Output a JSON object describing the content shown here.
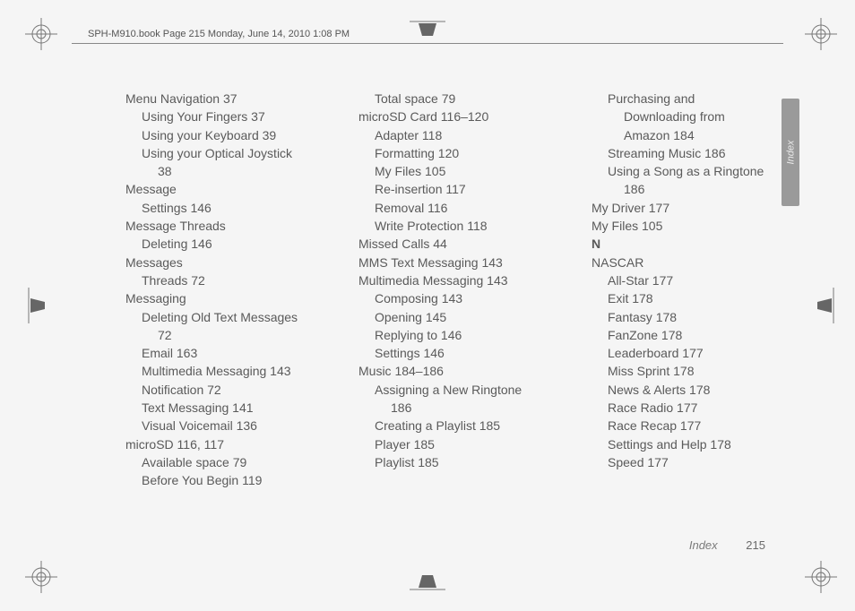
{
  "header": "SPH-M910.book  Page 215  Monday, June 14, 2010  1:08 PM",
  "sideTab": "Index",
  "footer": {
    "label": "Index",
    "page": "215"
  },
  "colors": {
    "background": "#f5f5f5",
    "text": "#5a5a5a",
    "header_text": "#555555",
    "rule": "#888888",
    "tab_bg": "#9a9a9a",
    "tab_text": "#eaeaea",
    "footer_text": "#6a6a6a"
  },
  "columns": [
    [
      {
        "lvl": 0,
        "t": "Menu Navigation 37"
      },
      {
        "lvl": 1,
        "t": "Using Your Fingers 37"
      },
      {
        "lvl": 1,
        "t": "Using your Keyboard 39"
      },
      {
        "lvl": 1,
        "t": "Using your Optical Joystick"
      },
      {
        "lvl": 2,
        "t": "38"
      },
      {
        "lvl": 0,
        "t": "Message"
      },
      {
        "lvl": 1,
        "t": "Settings 146"
      },
      {
        "lvl": 0,
        "t": "Message Threads"
      },
      {
        "lvl": 1,
        "t": "Deleting 146"
      },
      {
        "lvl": 0,
        "t": "Messages"
      },
      {
        "lvl": 1,
        "t": "Threads 72"
      },
      {
        "lvl": 0,
        "t": "Messaging"
      },
      {
        "lvl": 1,
        "t": "Deleting Old Text Messages"
      },
      {
        "lvl": 2,
        "t": "72"
      },
      {
        "lvl": 1,
        "t": "Email 163"
      },
      {
        "lvl": 1,
        "t": "Multimedia Messaging 143"
      },
      {
        "lvl": 1,
        "t": "Notification 72"
      },
      {
        "lvl": 1,
        "t": "Text Messaging 141"
      },
      {
        "lvl": 1,
        "t": "Visual Voicemail 136"
      },
      {
        "lvl": 0,
        "t": "microSD 116, 117"
      },
      {
        "lvl": 1,
        "t": "Available space 79"
      },
      {
        "lvl": 1,
        "t": "Before You Begin 119"
      }
    ],
    [
      {
        "lvl": 1,
        "t": "Total space 79"
      },
      {
        "lvl": 0,
        "t": "microSD Card 116–120"
      },
      {
        "lvl": 1,
        "t": "Adapter 118"
      },
      {
        "lvl": 1,
        "t": "Formatting 120"
      },
      {
        "lvl": 1,
        "t": "My Files 105"
      },
      {
        "lvl": 1,
        "t": "Re-insertion 117"
      },
      {
        "lvl": 1,
        "t": "Removal 116"
      },
      {
        "lvl": 1,
        "t": "Write Protection 118"
      },
      {
        "lvl": 0,
        "t": "Missed Calls 44"
      },
      {
        "lvl": 0,
        "t": "MMS Text Messaging 143"
      },
      {
        "lvl": 0,
        "t": "Multimedia Messaging 143"
      },
      {
        "lvl": 1,
        "t": "Composing 143"
      },
      {
        "lvl": 1,
        "t": "Opening 145"
      },
      {
        "lvl": 1,
        "t": "Replying to 146"
      },
      {
        "lvl": 1,
        "t": "Settings 146"
      },
      {
        "lvl": 0,
        "t": "Music 184–186"
      },
      {
        "lvl": 1,
        "t": "Assigning a New Ringtone"
      },
      {
        "lvl": 2,
        "t": "186"
      },
      {
        "lvl": 1,
        "t": "Creating a Playlist 185"
      },
      {
        "lvl": 1,
        "t": "Player 185"
      },
      {
        "lvl": 1,
        "t": "Playlist 185"
      }
    ],
    [
      {
        "lvl": 1,
        "t": "Purchasing and"
      },
      {
        "lvl": 2,
        "t": "Downloading from"
      },
      {
        "lvl": 2,
        "t": "Amazon 184"
      },
      {
        "lvl": 1,
        "t": "Streaming Music 186"
      },
      {
        "lvl": 1,
        "t": "Using a Song as a Ringtone"
      },
      {
        "lvl": 2,
        "t": "186"
      },
      {
        "lvl": 0,
        "t": "My Driver 177"
      },
      {
        "lvl": 0,
        "t": "My Files 105"
      },
      {
        "lvl": 0,
        "t": "N",
        "letter": true
      },
      {
        "lvl": 0,
        "t": "NASCAR"
      },
      {
        "lvl": 1,
        "t": "All-Star 177"
      },
      {
        "lvl": 1,
        "t": "Exit 178"
      },
      {
        "lvl": 1,
        "t": "Fantasy 178"
      },
      {
        "lvl": 1,
        "t": "FanZone 178"
      },
      {
        "lvl": 1,
        "t": "Leaderboard 177"
      },
      {
        "lvl": 1,
        "t": "Miss Sprint 178"
      },
      {
        "lvl": 1,
        "t": "News & Alerts 178"
      },
      {
        "lvl": 1,
        "t": "Race Radio 177"
      },
      {
        "lvl": 1,
        "t": "Race Recap 177"
      },
      {
        "lvl": 1,
        "t": "Settings and Help 178"
      },
      {
        "lvl": 1,
        "t": "Speed 177"
      }
    ]
  ]
}
